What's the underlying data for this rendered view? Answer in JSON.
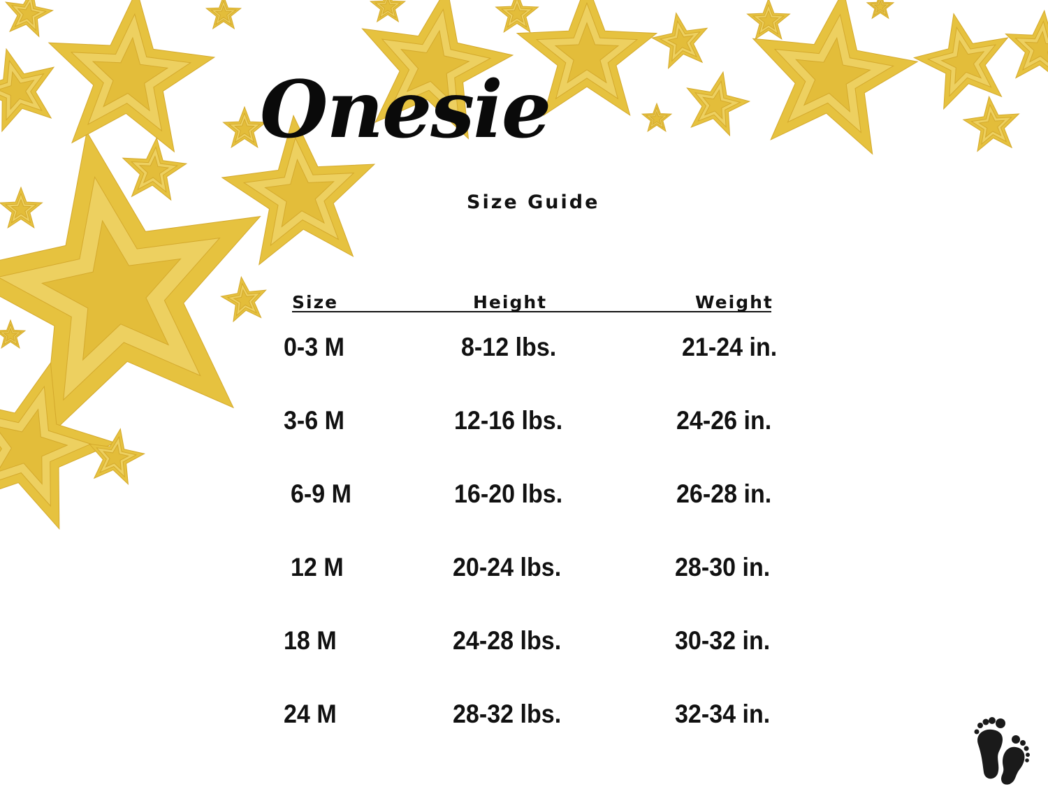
{
  "title": "Onesie",
  "subtitle": "Size Guide",
  "table": {
    "headers": [
      "Size",
      "Height",
      "Weight"
    ],
    "rows": [
      [
        "0-3 M",
        "8-12 lbs.",
        "21-24 in."
      ],
      [
        "3-6 M",
        "12-16 lbs.",
        "24-26 in."
      ],
      [
        "6-9 M",
        "16-20 lbs.",
        "26-28 in."
      ],
      [
        "12 M",
        "20-24 lbs.",
        "28-30 in."
      ],
      [
        "18 M",
        "24-28 lbs.",
        "30-32 in."
      ],
      [
        "24 M",
        "28-32 lbs.",
        "32-34 in."
      ]
    ]
  },
  "decorations": {
    "star_color": "#e9c84a",
    "footprints_icon": "baby-footprints-icon"
  }
}
